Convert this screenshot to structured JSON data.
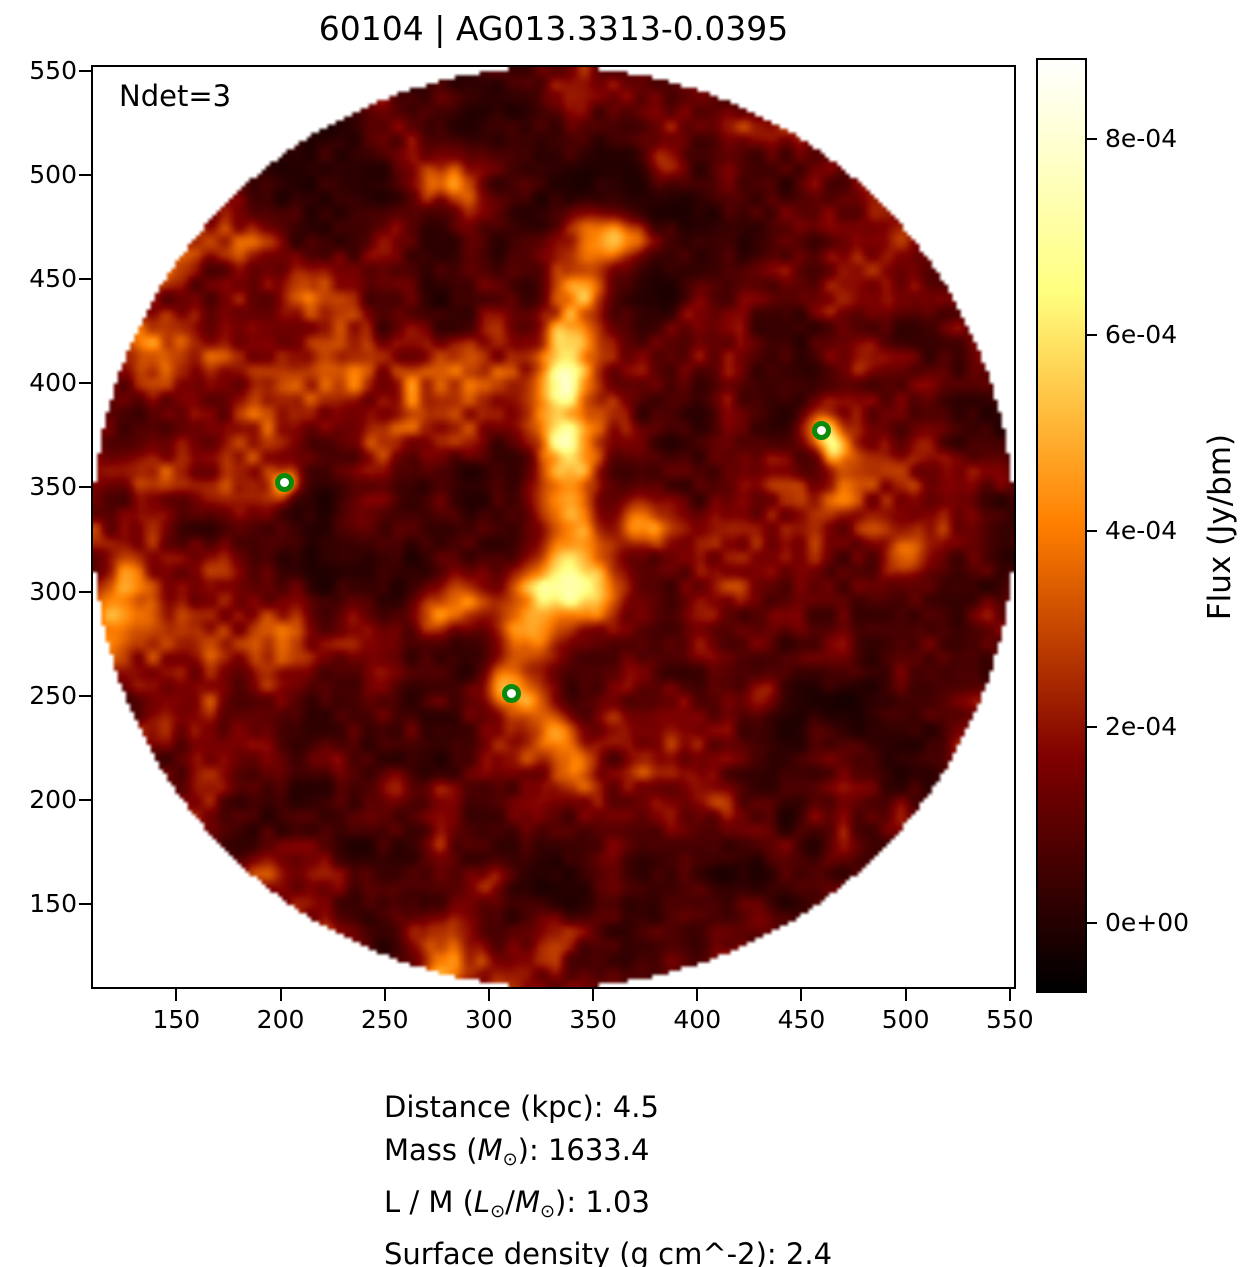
{
  "chart_data": {
    "type": "heatmap",
    "title": "60104 | AG013.3313-0.0395",
    "annotation": "Ndet=3",
    "xlabel": "",
    "ylabel": "",
    "xlim": [
      110,
      552
    ],
    "ylim": [
      110,
      552
    ],
    "x_ticks": [
      150,
      200,
      250,
      300,
      350,
      400,
      450,
      500,
      550
    ],
    "y_ticks": [
      150,
      200,
      250,
      300,
      350,
      400,
      450,
      500,
      550
    ],
    "grid": false,
    "mask": "circular",
    "mask_center": [
      331,
      331
    ],
    "mask_radius": 221,
    "background_outside_mask": "#ffffff",
    "colormap": "afmhot",
    "colorbar": {
      "label": "Flux (Jy/bm)",
      "tick_labels": [
        "0e+00",
        "2e-04",
        "4e-04",
        "6e-04",
        "8e-04"
      ],
      "tick_values": [
        0,
        0.0002,
        0.0004,
        0.0006,
        0.0008
      ],
      "vmin": -6.9e-05,
      "vmax": 0.000881,
      "position": "right"
    },
    "detections": [
      {
        "x": 202,
        "y": 352
      },
      {
        "x": 311,
        "y": 251
      },
      {
        "x": 460,
        "y": 377
      }
    ],
    "marker_color": "#0a8a0a",
    "marker_face": "#ffffff",
    "noise_seed": 7,
    "bright_features": [
      {
        "x": 352,
        "y": 468,
        "s": 10,
        "a": 0.45
      },
      {
        "x": 364,
        "y": 470,
        "s": 7,
        "a": 0.4
      },
      {
        "x": 346,
        "y": 446,
        "s": 9,
        "a": 0.42
      },
      {
        "x": 340,
        "y": 422,
        "s": 9,
        "a": 0.48
      },
      {
        "x": 336,
        "y": 400,
        "s": 9,
        "a": 0.5
      },
      {
        "x": 334,
        "y": 381,
        "s": 9,
        "a": 0.45
      },
      {
        "x": 340,
        "y": 363,
        "s": 10,
        "a": 0.5
      },
      {
        "x": 334,
        "y": 342,
        "s": 10,
        "a": 0.52
      },
      {
        "x": 342,
        "y": 320,
        "s": 11,
        "a": 0.55
      },
      {
        "x": 352,
        "y": 300,
        "s": 10,
        "a": 0.5
      },
      {
        "x": 330,
        "y": 300,
        "s": 12,
        "a": 0.55
      },
      {
        "x": 318,
        "y": 280,
        "s": 10,
        "a": 0.5
      },
      {
        "x": 308,
        "y": 257,
        "s": 8,
        "a": 0.52
      },
      {
        "x": 320,
        "y": 248,
        "s": 8,
        "a": 0.45
      },
      {
        "x": 332,
        "y": 232,
        "s": 8,
        "a": 0.4
      },
      {
        "x": 340,
        "y": 216,
        "s": 7,
        "a": 0.3
      },
      {
        "x": 286,
        "y": 297,
        "s": 9,
        "a": 0.45
      },
      {
        "x": 271,
        "y": 289,
        "s": 7,
        "a": 0.3
      },
      {
        "x": 372,
        "y": 333,
        "s": 8,
        "a": 0.35
      },
      {
        "x": 330,
        "y": 290,
        "s": 22,
        "a": 0.12
      },
      {
        "x": 338,
        "y": 390,
        "s": 16,
        "a": 0.1
      },
      {
        "x": 460,
        "y": 377,
        "s": 6,
        "a": 0.5
      },
      {
        "x": 467,
        "y": 368,
        "s": 5,
        "a": 0.3
      },
      {
        "x": 202,
        "y": 352,
        "s": 4.5,
        "a": 0.42
      },
      {
        "x": 121,
        "y": 289,
        "s": 9,
        "a": 0.45
      },
      {
        "x": 114,
        "y": 272,
        "s": 8,
        "a": 0.35
      },
      {
        "x": 125,
        "y": 305,
        "s": 7,
        "a": 0.3
      },
      {
        "x": 238,
        "y": 333,
        "s": 7,
        "a": 0.22
      },
      {
        "x": 398,
        "y": 432,
        "s": 7,
        "a": 0.22
      },
      {
        "x": 432,
        "y": 250,
        "s": 7,
        "a": 0.2
      },
      {
        "x": 385,
        "y": 505,
        "s": 7,
        "a": 0.25
      },
      {
        "x": 255,
        "y": 205,
        "s": 6,
        "a": 0.2
      },
      {
        "x": 412,
        "y": 198,
        "s": 6,
        "a": 0.18
      },
      {
        "x": 500,
        "y": 318,
        "s": 7,
        "a": 0.18
      },
      {
        "x": 210,
        "y": 450,
        "s": 6,
        "a": 0.18
      },
      {
        "x": 300,
        "y": 160,
        "s": 6,
        "a": 0.2
      },
      {
        "x": 430,
        "y": 140,
        "s": 6,
        "a": 0.18
      }
    ]
  },
  "info_lines": [
    {
      "segments": [
        {
          "t": "Distance (kpc): 4.5"
        }
      ]
    },
    {
      "segments": [
        {
          "t": "Mass ("
        },
        {
          "t": "M",
          "style": "it"
        },
        {
          "t": "⊙",
          "style": "sub"
        },
        {
          "t": "): 1633.4"
        }
      ]
    },
    {
      "segments": [
        {
          "t": "L / M ("
        },
        {
          "t": "L",
          "style": "it"
        },
        {
          "t": "⊙",
          "style": "sub"
        },
        {
          "t": "/"
        },
        {
          "t": "M",
          "style": "it"
        },
        {
          "t": "⊙",
          "style": "sub"
        },
        {
          "t": "): 1.03"
        }
      ]
    },
    {
      "segments": [
        {
          "t": "Surface density (g cm^-2): 2.4"
        }
      ]
    }
  ]
}
